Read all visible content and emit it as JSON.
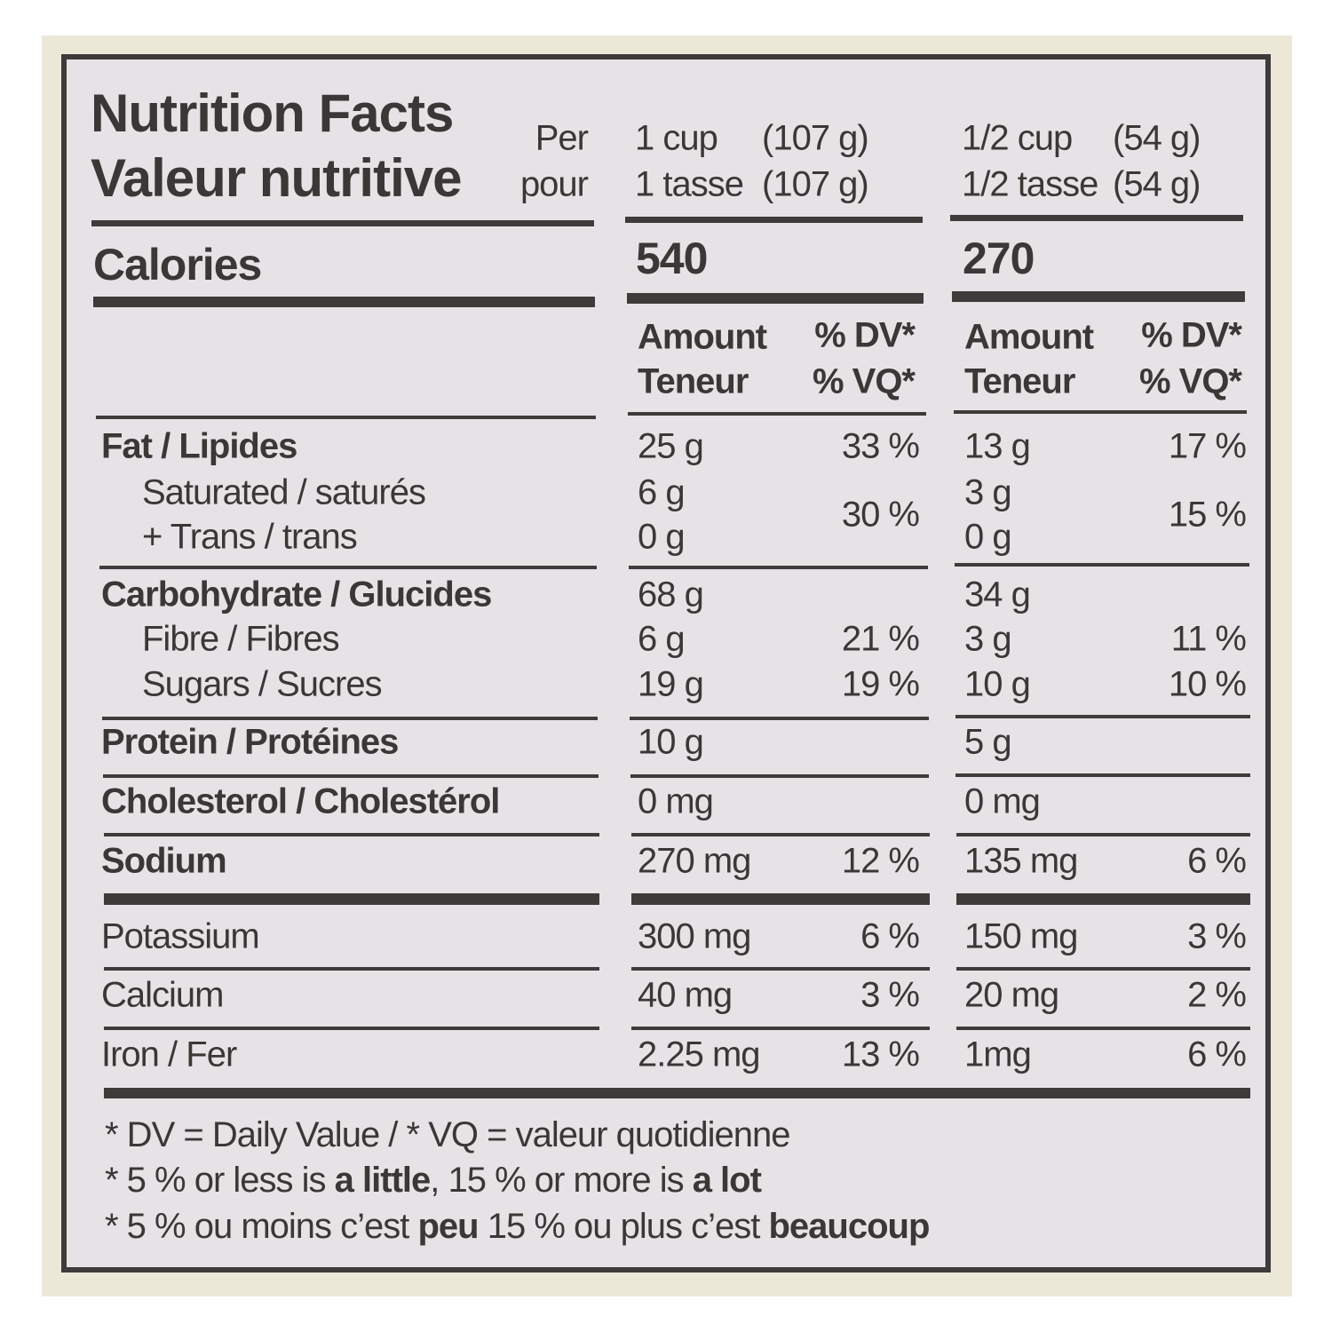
{
  "header": {
    "title_en": "Nutrition Facts",
    "title_fr": "Valeur nutritive",
    "per": "Per",
    "pour": "pour",
    "servings": [
      {
        "en": "1 cup",
        "fr": "1 tasse",
        "weight": "(107 g)"
      },
      {
        "en": "1/2 cup",
        "fr": "1/2 tasse",
        "weight": "(54 g)"
      }
    ]
  },
  "calories": {
    "label": "Calories",
    "values": [
      "540",
      "270"
    ]
  },
  "column_header": {
    "amount": "Amount",
    "teneur": "Teneur",
    "dv": "% DV*",
    "vq": "% VQ*"
  },
  "rows": [
    {
      "label": "Fat / Lipides",
      "bold": true,
      "indent": false,
      "amounts": [
        "25 g",
        "13 g"
      ],
      "dv": [
        "33 %",
        "17 %"
      ]
    },
    {
      "label": "Saturated / saturés",
      "bold": false,
      "indent": true,
      "amounts": [
        "6 g",
        "3 g"
      ],
      "combined_dv": [
        "30 %",
        "15 %"
      ]
    },
    {
      "label": "+ Trans / trans",
      "bold": false,
      "indent": true,
      "amounts": [
        "0 g",
        "0 g"
      ]
    },
    {
      "label": "Carbohydrate / Glucides",
      "bold": true,
      "indent": false,
      "amounts": [
        "68 g",
        "34 g"
      ]
    },
    {
      "label": "Fibre / Fibres",
      "bold": false,
      "indent": true,
      "amounts": [
        "6 g",
        "3 g"
      ],
      "dv": [
        "21 %",
        "11 %"
      ]
    },
    {
      "label": "Sugars / Sucres",
      "bold": false,
      "indent": true,
      "amounts": [
        "19 g",
        "10 g"
      ],
      "dv": [
        "19 %",
        "10 %"
      ]
    },
    {
      "label": "Protein / Protéines",
      "bold": true,
      "indent": false,
      "amounts": [
        "10 g",
        "5 g"
      ]
    },
    {
      "label": "Cholesterol / Cholestérol",
      "bold": true,
      "indent": false,
      "amounts": [
        "0 mg",
        "0 mg"
      ]
    },
    {
      "label": "Sodium",
      "bold": true,
      "indent": false,
      "amounts": [
        "270 mg",
        "135 mg"
      ],
      "dv": [
        "12 %",
        "6 %"
      ]
    },
    {
      "label": "Potassium",
      "bold": false,
      "indent": false,
      "amounts": [
        "300 mg",
        "150 mg"
      ],
      "dv": [
        "6 %",
        "3 %"
      ]
    },
    {
      "label": "Calcium",
      "bold": false,
      "indent": false,
      "amounts": [
        "40 mg",
        "20 mg"
      ],
      "dv": [
        "3 %",
        "2 %"
      ]
    },
    {
      "label": "Iron / Fer",
      "bold": false,
      "indent": false,
      "amounts": [
        "2.25 mg",
        "1mg"
      ],
      "dv": [
        "13 %",
        "6 %"
      ]
    }
  ],
  "footnotes": [
    [
      {
        "text": "* DV = Daily Value / * VQ = valeur quotidienne",
        "bold": false
      }
    ],
    [
      {
        "text": "* 5 % or less is ",
        "bold": false
      },
      {
        "text": "a little",
        "bold": true
      },
      {
        "text": ", 15 % or more is ",
        "bold": false
      },
      {
        "text": "a lot",
        "bold": true
      }
    ],
    [
      {
        "text": "* 5 % ou moins c’est ",
        "bold": false
      },
      {
        "text": "peu",
        "bold": true
      },
      {
        "text": " 15 % ou plus c’est ",
        "bold": false
      },
      {
        "text": "beaucoup",
        "bold": true
      }
    ]
  ]
}
